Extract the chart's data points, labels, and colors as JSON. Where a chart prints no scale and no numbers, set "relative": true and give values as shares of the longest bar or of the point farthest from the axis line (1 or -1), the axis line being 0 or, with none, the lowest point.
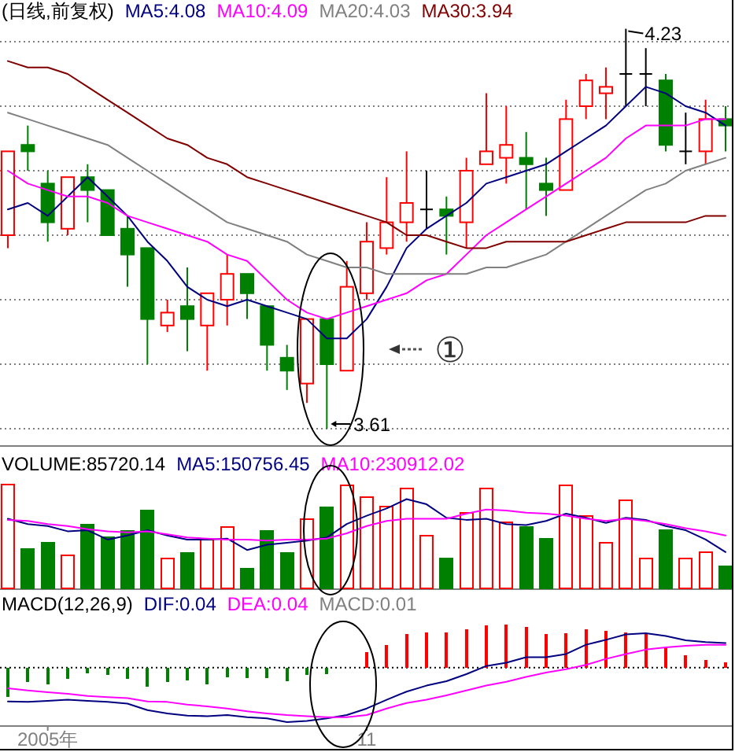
{
  "chart_data": [
    {
      "type": "candlestick",
      "title": "(日线,前复权)",
      "legend": "top left",
      "tick_labels": false,
      "grid": "y",
      "categories": [
        null,
        null,
        null,
        null,
        null,
        null,
        null,
        null,
        null,
        null,
        null,
        null,
        null,
        null,
        null,
        null,
        null,
        null,
        null,
        null,
        null,
        null,
        null,
        null,
        null,
        null,
        null,
        null,
        null,
        null,
        null,
        null,
        null,
        null,
        null,
        null,
        null
      ],
      "ohlc": [
        [
          3.91,
          4.04,
          3.89,
          4.04
        ],
        [
          4.05,
          4.08,
          4.01,
          4.04
        ],
        [
          3.99,
          4.01,
          3.9,
          3.93
        ],
        [
          3.92,
          4.0,
          3.91,
          4.0
        ],
        [
          4.0,
          4.02,
          3.93,
          3.98
        ],
        [
          3.98,
          3.98,
          3.91,
          3.91
        ],
        [
          3.92,
          3.94,
          3.83,
          3.88
        ],
        [
          3.89,
          3.89,
          3.71,
          3.78
        ],
        [
          3.77,
          3.81,
          3.76,
          3.79
        ],
        [
          3.8,
          3.86,
          3.73,
          3.78
        ],
        [
          3.77,
          3.82,
          3.7,
          3.82
        ],
        [
          3.81,
          3.88,
          3.77,
          3.85
        ],
        [
          3.85,
          3.85,
          3.78,
          3.82
        ],
        [
          3.8,
          3.8,
          3.7,
          3.74
        ],
        [
          3.72,
          3.74,
          3.67,
          3.7
        ],
        [
          3.68,
          3.78,
          3.65,
          3.78
        ],
        [
          3.78,
          3.78,
          3.61,
          3.71
        ],
        [
          3.7,
          3.87,
          3.7,
          3.83
        ],
        [
          3.82,
          3.93,
          3.81,
          3.9
        ],
        [
          3.89,
          4.0,
          3.88,
          3.93
        ],
        [
          3.93,
          4.04,
          3.9,
          3.96
        ],
        [
          3.95,
          4.01,
          3.92,
          3.95
        ],
        [
          3.95,
          3.97,
          3.88,
          3.94
        ],
        [
          3.93,
          4.03,
          3.89,
          4.01
        ],
        [
          4.02,
          4.13,
          4.02,
          4.04
        ],
        [
          4.03,
          4.11,
          3.99,
          4.05
        ],
        [
          4.03,
          4.07,
          3.95,
          4.02
        ],
        [
          3.99,
          4.03,
          3.94,
          3.98
        ],
        [
          3.98,
          4.12,
          3.98,
          4.09
        ],
        [
          4.11,
          4.16,
          4.09,
          4.15
        ],
        [
          4.13,
          4.17,
          4.09,
          4.14
        ],
        [
          4.16,
          4.23,
          4.11,
          4.16
        ],
        [
          4.16,
          4.2,
          4.11,
          4.16
        ],
        [
          4.15,
          4.16,
          4.04,
          4.05
        ],
        [
          4.04,
          4.1,
          4.02,
          4.04
        ],
        [
          4.04,
          4.12,
          4.02,
          4.09
        ],
        [
          4.09,
          4.11,
          4.04,
          4.08
        ]
      ],
      "colors": [
        "#ff0000",
        "#008000",
        "#008000",
        "#ff0000",
        "#008000",
        "#008000",
        "#008000",
        "#008000",
        "#ff0000",
        "#008000",
        "#ff0000",
        "#ff0000",
        "#008000",
        "#008000",
        "#008000",
        "#ff0000",
        "#008000",
        "#ff0000",
        "#ff0000",
        "#ff0000",
        "#ff0000",
        "#000000",
        "#008000",
        "#ff0000",
        "#ff0000",
        "#ff0000",
        "#008000",
        "#008000",
        "#ff0000",
        "#ff0000",
        "#ff0000",
        "#000000",
        "#000000",
        "#008000",
        "#000000",
        "#ff0000",
        "#008000"
      ],
      "series": [
        {
          "name": "MA5:4.08",
          "type": "line",
          "color": "#000080",
          "values": [
            3.95,
            3.96,
            3.94,
            3.97,
            4.0,
            3.97,
            3.94,
            3.9,
            3.87,
            3.83,
            3.81,
            3.8,
            3.81,
            3.8,
            3.79,
            3.78,
            3.75,
            3.75,
            3.78,
            3.83,
            3.89,
            3.92,
            3.94,
            3.96,
            3.99,
            4.0,
            4.01,
            4.02,
            4.04,
            4.06,
            4.08,
            4.11,
            4.14,
            4.13,
            4.11,
            4.1,
            4.08
          ]
        },
        {
          "name": "MA10:4.09",
          "type": "line",
          "color": "#ff00ff",
          "values": [
            4.01,
            3.99,
            3.98,
            3.97,
            3.97,
            3.96,
            3.94,
            3.93,
            3.92,
            3.91,
            3.9,
            3.88,
            3.87,
            3.84,
            3.81,
            3.79,
            3.78,
            3.79,
            3.8,
            3.81,
            3.82,
            3.84,
            3.85,
            3.88,
            3.91,
            3.93,
            3.95,
            3.97,
            3.99,
            4.01,
            4.03,
            4.06,
            4.08,
            4.08,
            4.08,
            4.09,
            4.09
          ]
        },
        {
          "name": "MA20:4.03",
          "type": "line",
          "color": "#808080",
          "values": [
            4.1,
            4.09,
            4.08,
            4.07,
            4.06,
            4.05,
            4.03,
            4.01,
            3.99,
            3.97,
            3.95,
            3.93,
            3.92,
            3.91,
            3.9,
            3.88,
            3.87,
            3.86,
            3.86,
            3.85,
            3.85,
            3.85,
            3.85,
            3.85,
            3.86,
            3.86,
            3.87,
            3.88,
            3.9,
            3.92,
            3.94,
            3.96,
            3.98,
            3.99,
            4.01,
            4.02,
            4.03
          ]
        },
        {
          "name": "MA30:3.94",
          "type": "line",
          "color": "#800000",
          "values": [
            4.18,
            4.17,
            4.17,
            4.16,
            4.14,
            4.12,
            4.1,
            4.08,
            4.06,
            4.05,
            4.03,
            4.02,
            4.0,
            3.99,
            3.98,
            3.97,
            3.96,
            3.95,
            3.94,
            3.93,
            3.91,
            3.91,
            3.9,
            3.89,
            3.89,
            3.9,
            3.9,
            3.9,
            3.9,
            3.91,
            3.92,
            3.93,
            3.93,
            3.93,
            3.93,
            3.94,
            3.94
          ]
        }
      ],
      "yticks": [
        {
          "value": 3.61,
          "label": null
        },
        {
          "value": 3.71,
          "label": null
        },
        {
          "value": 3.81,
          "label": null
        },
        {
          "value": 3.91,
          "label": null
        },
        {
          "value": 4.01,
          "label": null
        },
        {
          "value": 4.11,
          "label": null
        },
        {
          "value": 4.21,
          "label": null
        }
      ],
      "annotations": [
        "4.23",
        "3.61",
        "①"
      ]
    },
    {
      "type": "bar",
      "relative": true,
      "title": "VOLUME:85720.14",
      "legend": "top left",
      "tick_labels": false,
      "categories": [
        null,
        null,
        null,
        null,
        null,
        null,
        null,
        null,
        null,
        null,
        null,
        null,
        null,
        null,
        null,
        null,
        null,
        null,
        null,
        null,
        null,
        null,
        null,
        null,
        null,
        null,
        null,
        null,
        null,
        null,
        null,
        null,
        null,
        null,
        null,
        null,
        null
      ],
      "series": [
        {
          "values": [
            1,
            0.38,
            0.44,
            0.32,
            0.61,
            0.49,
            0.55,
            0.75,
            0.29,
            0.34,
            0.47,
            0.59,
            0.19,
            0.55,
            0.34,
            0.67,
            0.78,
            0.99,
            0.88,
            0.79,
            0.96,
            0.51,
            0.29,
            0.73,
            0.96,
            0.64,
            0.59,
            0.48,
            0.99,
            0.7,
            0.44,
            0.85,
            0.29,
            0.56,
            0.29,
            0.35,
            0.21
          ],
          "colors": [
            "#ff0000",
            "#008000",
            "#008000",
            "#ff0000",
            "#008000",
            "#008000",
            "#008000",
            "#008000",
            "#ff0000",
            "#008000",
            "#ff0000",
            "#ff0000",
            "#008000",
            "#008000",
            "#008000",
            "#ff0000",
            "#008000",
            "#ff0000",
            "#ff0000",
            "#ff0000",
            "#ff0000",
            "#ff0000",
            "#008000",
            "#ff0000",
            "#ff0000",
            "#ff0000",
            "#008000",
            "#008000",
            "#ff0000",
            "#ff0000",
            "#ff0000",
            "#ff0000",
            "#ff0000",
            "#008000",
            "#ff0000",
            "#ff0000",
            "#008000"
          ]
        },
        {
          "name": "MA5:150756.45",
          "type": "line",
          "color": "#000080",
          "values": [
            0.67,
            0.62,
            0.6,
            0.55,
            0.56,
            0.47,
            0.51,
            0.56,
            0.51,
            0.47,
            0.47,
            0.48,
            0.37,
            0.42,
            0.44,
            0.46,
            0.49,
            0.62,
            0.7,
            0.77,
            0.86,
            0.81,
            0.68,
            0.66,
            0.67,
            0.62,
            0.61,
            0.65,
            0.72,
            0.68,
            0.63,
            0.68,
            0.66,
            0.6,
            0.56,
            0.47,
            0.35
          ]
        },
        {
          "name": "MA10:230912.02",
          "type": "line",
          "color": "#ff00ff",
          "values": [
            0.66,
            0.65,
            0.62,
            0.6,
            0.57,
            0.55,
            0.54,
            0.55,
            0.52,
            0.49,
            0.48,
            0.47,
            0.47,
            0.46,
            0.47,
            0.47,
            0.48,
            0.53,
            0.6,
            0.65,
            0.67,
            0.67,
            0.67,
            0.72,
            0.76,
            0.75,
            0.73,
            0.72,
            0.7,
            0.67,
            0.65,
            0.67,
            0.65,
            0.62,
            0.58,
            0.55,
            0.51
          ]
        }
      ]
    },
    {
      "type": "line",
      "relative": true,
      "title": "MACD(12,26,9)",
      "legend": "top left",
      "tick_labels": "x",
      "categories": [
        null,
        null,
        "2005年",
        null,
        null,
        null,
        null,
        null,
        null,
        null,
        null,
        null,
        null,
        null,
        null,
        null,
        null,
        null,
        "11",
        null,
        null,
        null,
        null,
        null,
        null,
        null,
        null,
        null,
        null,
        null,
        null,
        null,
        null,
        null,
        null,
        null,
        null
      ],
      "ref_lines": [
        {
          "axis": "y",
          "value": 0,
          "color": "#000000",
          "line_style": "dotted"
        }
      ],
      "series": [
        {
          "name": "DIF:0.04",
          "type": "line",
          "color": "#000080",
          "values": [
            -0.62,
            -0.63,
            -0.61,
            -0.59,
            -0.61,
            -0.63,
            -0.66,
            -0.78,
            -0.84,
            -0.88,
            -0.89,
            -0.87,
            -0.91,
            -0.93,
            -1,
            -0.98,
            -0.93,
            -0.87,
            -0.75,
            -0.59,
            -0.44,
            -0.33,
            -0.25,
            -0.12,
            0.03,
            0.09,
            0.19,
            0.19,
            0.25,
            0.42,
            0.51,
            0.61,
            0.63,
            0.58,
            0.5,
            0.47,
            0.45
          ]
        },
        {
          "name": "DEA:0.04",
          "type": "line",
          "color": "#ff00ff",
          "values": [
            -0.38,
            -0.42,
            -0.45,
            -0.48,
            -0.52,
            -0.54,
            -0.56,
            -0.62,
            -0.63,
            -0.68,
            -0.71,
            -0.75,
            -0.8,
            -0.84,
            -0.87,
            -0.89,
            -0.91,
            -0.91,
            -0.87,
            -0.75,
            -0.65,
            -0.59,
            -0.51,
            -0.42,
            -0.33,
            -0.26,
            -0.17,
            -0.09,
            -0.03,
            0.05,
            0.16,
            0.25,
            0.33,
            0.37,
            0.4,
            0.42,
            0.42
          ]
        },
        {
          "name": "MACD:0.01",
          "type": "bar",
          "color": "#808080",
          "values": [
            -0.54,
            -0.26,
            -0.31,
            -0.21,
            -0.1,
            -0.14,
            -0.21,
            -0.35,
            -0.26,
            -0.24,
            -0.31,
            -0.17,
            -0.19,
            -0.19,
            -0.25,
            -0.14,
            -0.12,
            null,
            0.28,
            0.42,
            0.61,
            0.65,
            0.65,
            0.7,
            0.77,
            0.79,
            0.75,
            0.61,
            0.63,
            0.7,
            0.67,
            0.65,
            0.61,
            0.37,
            0.23,
            0.14,
            0.09
          ],
          "colors": [
            "#008000",
            "#008000",
            "#008000",
            "#008000",
            "#008000",
            "#008000",
            "#008000",
            "#008000",
            "#008000",
            "#008000",
            "#008000",
            "#008000",
            "#008000",
            "#008000",
            "#008000",
            "#008000",
            "#008000",
            null,
            "#ff0000",
            "#ff0000",
            "#ff0000",
            "#ff0000",
            "#ff0000",
            "#ff0000",
            "#ff0000",
            "#ff0000",
            "#ff0000",
            "#ff0000",
            "#ff0000",
            "#ff0000",
            "#ff0000",
            "#ff0000",
            "#ff0000",
            "#ff0000",
            "#ff0000",
            "#ff0000",
            "#ff0000"
          ]
        }
      ]
    }
  ]
}
